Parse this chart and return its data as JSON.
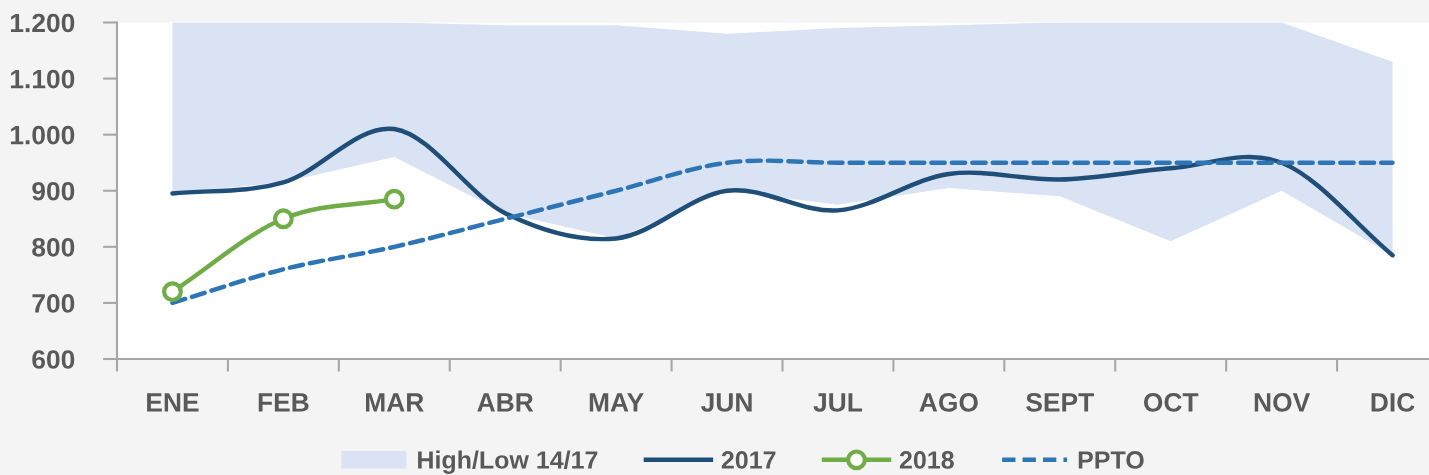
{
  "chart_data": {
    "type": "line",
    "categories": [
      "ENE",
      "FEB",
      "MAR",
      "ABR",
      "MAY",
      "JUN",
      "JUL",
      "AGO",
      "SEPT",
      "OCT",
      "NOV",
      "DIC"
    ],
    "ylim": [
      600,
      1200
    ],
    "yticks": [
      600,
      700,
      800,
      900,
      {
        "value": 1000,
        "label": "1.000"
      },
      {
        "value": 1100,
        "label": "1.100"
      },
      {
        "value": 1200,
        "label": "1.200"
      }
    ],
    "legend": "bottom",
    "series": [
      {
        "name": "High/Low 14/17",
        "type": "area",
        "color": "#dae3f3",
        "values": [
          null,
          null,
          null,
          null,
          null,
          null,
          null,
          null,
          null,
          null,
          null,
          null
        ],
        "lower": [
          895,
          915,
          960,
          860,
          815,
          900,
          875,
          905,
          890,
          810,
          900,
          785
        ],
        "upper": [
          1200,
          1200,
          1200,
          1195,
          1195,
          1180,
          1190,
          1195,
          1200,
          1200,
          1200,
          1130
        ]
      },
      {
        "name": "2017",
        "color": "#1f4e79",
        "line_style": "solid",
        "values": [
          895,
          915,
          1010,
          860,
          815,
          900,
          865,
          930,
          920,
          940,
          950,
          785
        ]
      },
      {
        "name": "2018",
        "color": "#70ad47",
        "line_style": "solid",
        "marker": "circle",
        "values": [
          720,
          850,
          885,
          null,
          null,
          null,
          null,
          null,
          null,
          null,
          null,
          null
        ]
      },
      {
        "name": "PPTO",
        "color": "#2e75b6",
        "line_style": "dashed",
        "values": [
          700,
          760,
          800,
          850,
          900,
          950,
          950,
          950,
          950,
          950,
          950,
          950
        ]
      }
    ]
  }
}
